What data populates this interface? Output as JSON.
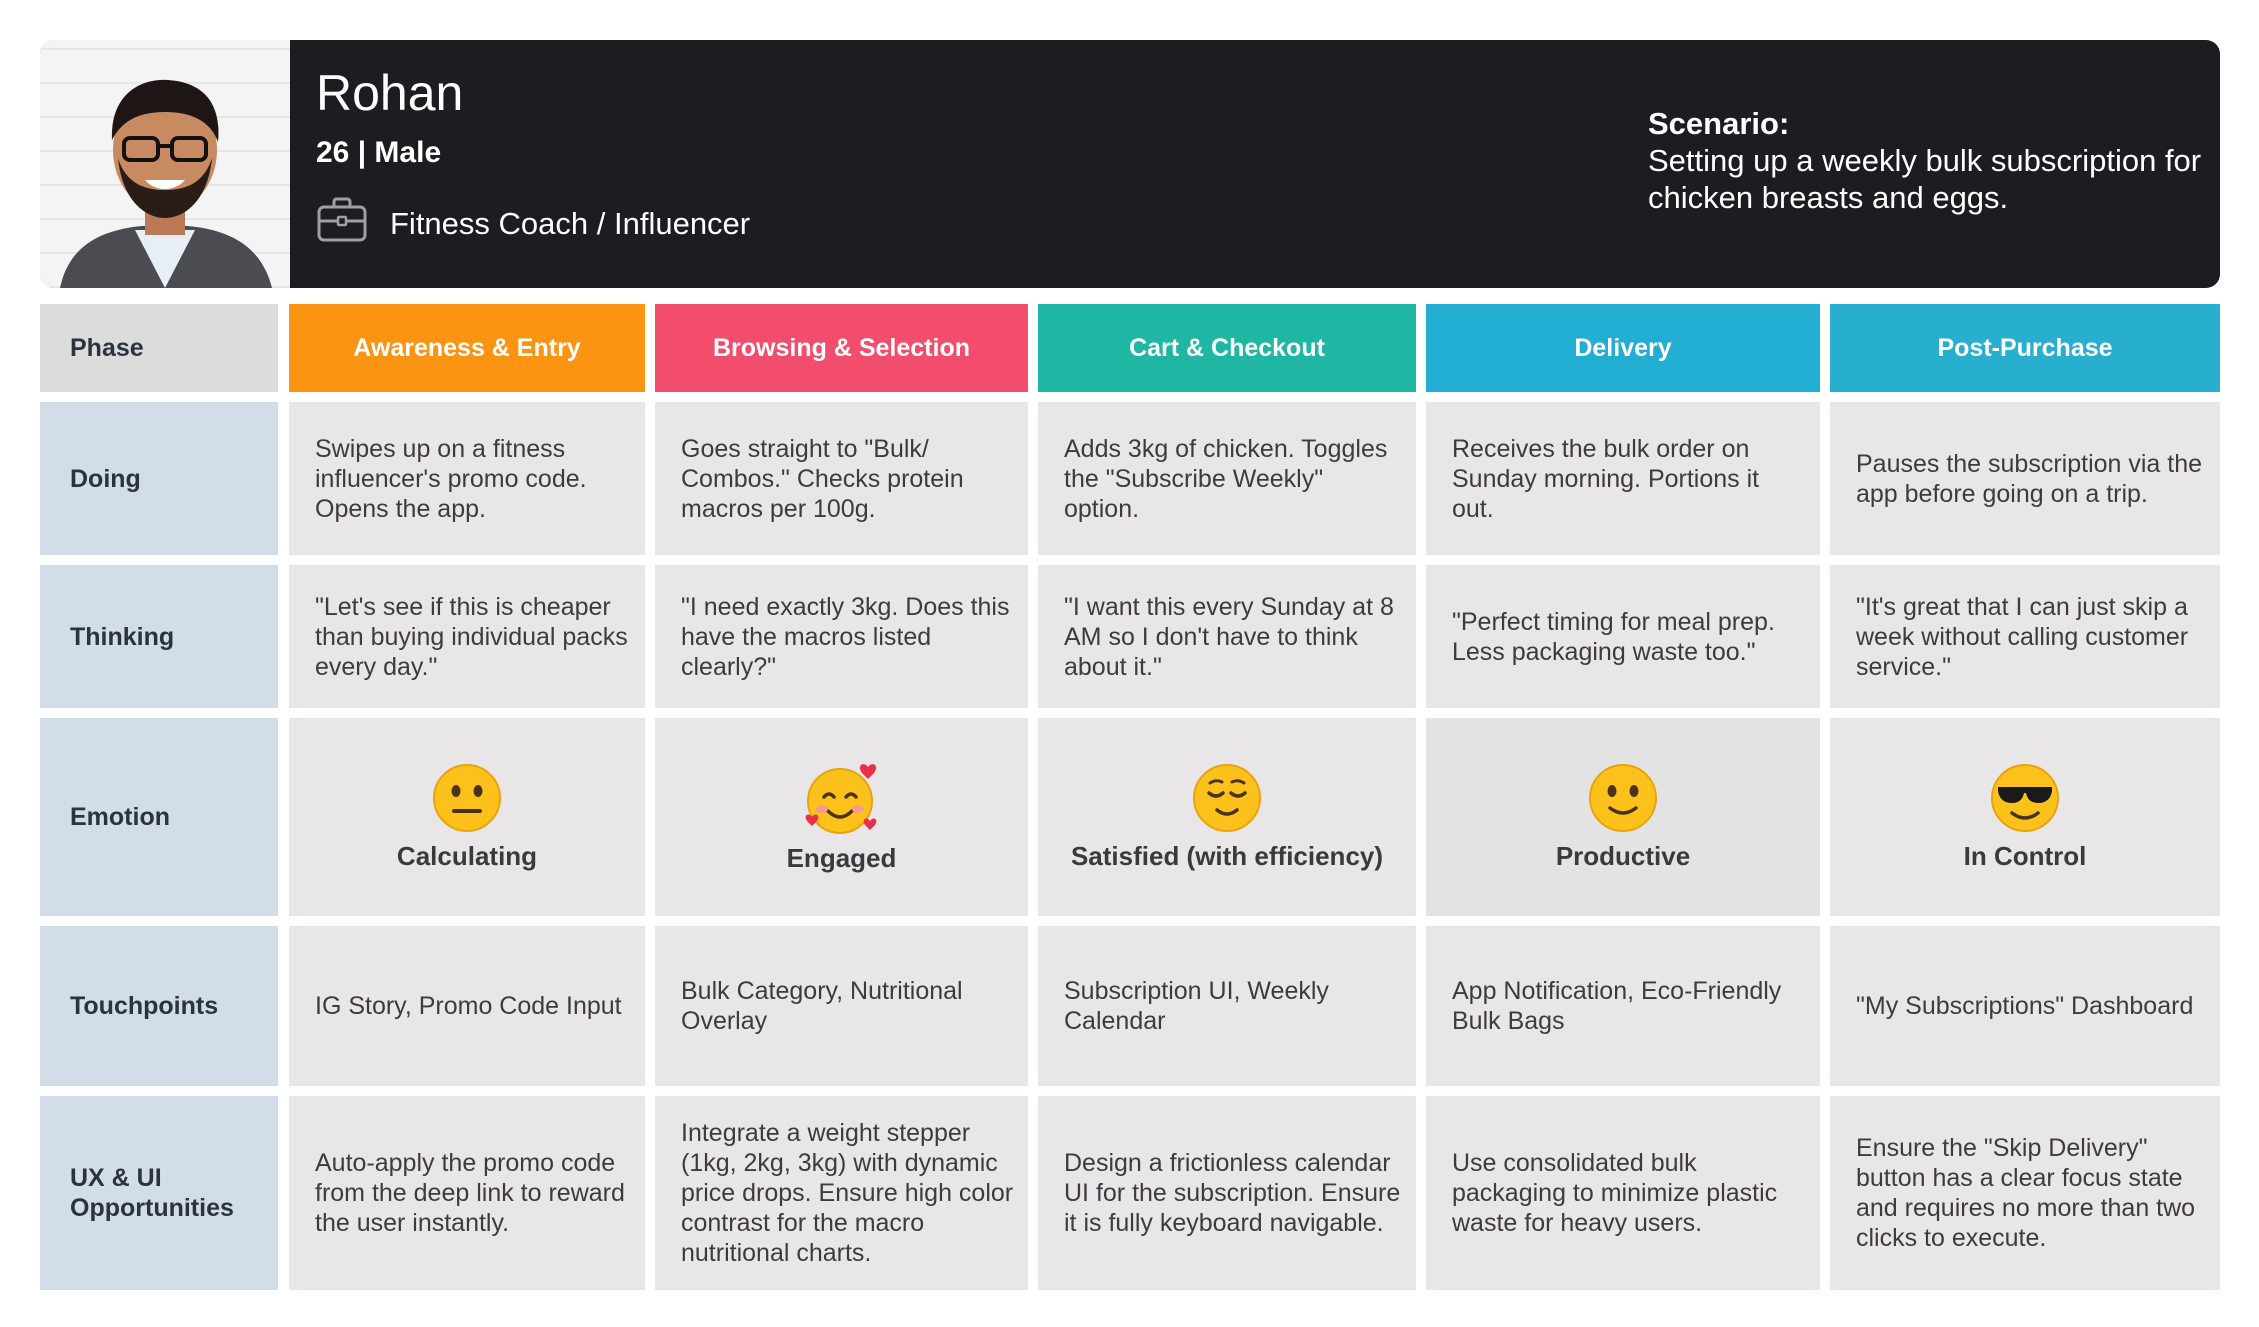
{
  "persona": {
    "name": "Rohan",
    "age_gender": "26 | Male",
    "occupation": "Fitness Coach / Influencer",
    "scenario_label": "Scenario:",
    "scenario_text": "Setting up a weekly bulk subscription for chicken breasts and eggs."
  },
  "row_labels": {
    "phase": "Phase",
    "doing": "Doing",
    "thinking": "Thinking",
    "emotion": "Emotion",
    "touchpoints": "Touchpoints",
    "ux": "UX & UI Opportunities"
  },
  "phases": [
    {
      "title": "Awareness & Entry",
      "color": "#fb9412",
      "doing": "Swipes up on a fitness influencer's promo code. Opens the app.",
      "thinking": "\"Let's see if this is cheaper than buying individual packs every day.\"",
      "emotion_icon": "neutral-face-icon",
      "emotion": "Calculating",
      "touchpoints": "IG Story, Promo Code Input",
      "ux": "Auto-apply the promo code from the deep link to reward the user instantly."
    },
    {
      "title": "Browsing & Selection",
      "color": "#f24d6c",
      "doing": "Goes straight to \"Bulk/ Combos.\" Checks protein macros per 100g.",
      "thinking": "\"I need exactly 3kg. Does this have the macros listed clearly?\"",
      "emotion_icon": "smiling-face-with-hearts-icon",
      "emotion": "Engaged",
      "touchpoints": "Bulk Category, Nutritional Overlay",
      "ux": "Integrate a weight stepper (1kg, 2kg, 3kg) with dynamic price drops. Ensure high color contrast for the macro nutritional charts."
    },
    {
      "title": "Cart & Checkout",
      "color": "#1fb6a3",
      "doing": "Adds 3kg of chicken. Toggles the \"Subscribe Weekly\" option.",
      "thinking": "\"I want this every Sunday at 8 AM so I don't have to think about it.\"",
      "emotion_icon": "relieved-face-icon",
      "emotion": "Satisfied (with efficiency)",
      "touchpoints": "Subscription UI, Weekly Calendar",
      "ux": "Design a frictionless calendar UI for the subscription. Ensure it is fully keyboard navigable."
    },
    {
      "title": "Delivery",
      "color": "#22aed3",
      "doing": "Receives the bulk order on Sunday morning. Portions it out.",
      "thinking": "\"Perfect timing for meal prep. Less packaging waste too.\"",
      "emotion_icon": "slightly-smiling-face-icon",
      "emotion": "Productive",
      "touchpoints": "App Notification, Eco-Friendly Bulk Bags",
      "ux": "Use consolidated bulk packaging to minimize plastic waste for heavy users."
    },
    {
      "title": "Post-Purchase",
      "color": "#28afd0",
      "doing": "Pauses the subscription via the app before going on a trip.",
      "thinking": "\"It's great that I can just skip a week without calling customer service.\"",
      "emotion_icon": "sunglasses-face-icon",
      "emotion": "In Control",
      "touchpoints": "\"My Subscriptions\" Dashboard",
      "ux": "Ensure the \"Skip Delivery\" button has a clear focus state and requires no more than two clicks to execute."
    }
  ]
}
